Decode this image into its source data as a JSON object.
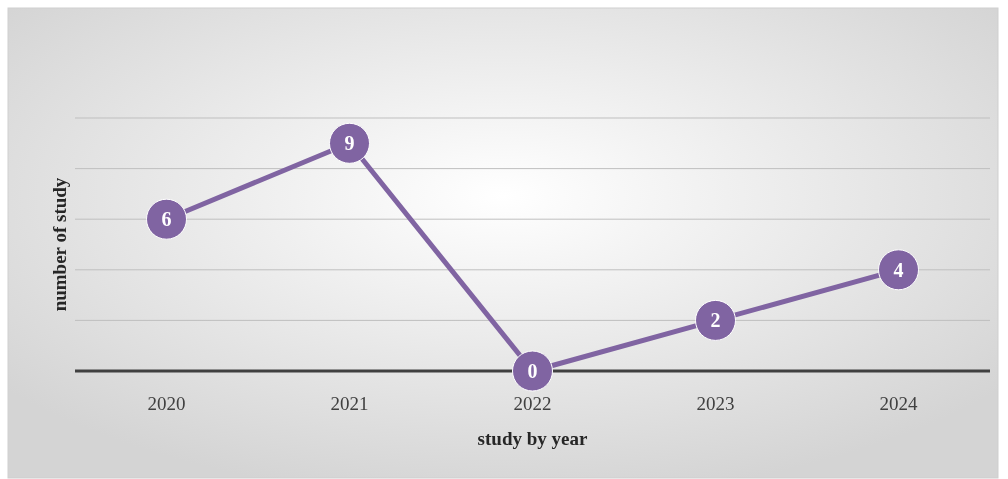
{
  "chart_data": {
    "type": "line",
    "xlabel": "study by year",
    "ylabel": "number of study",
    "categories": [
      "2020",
      "2021",
      "2022",
      "2023",
      "2024"
    ],
    "series": [
      {
        "color": "#8064a2",
        "values": [
          6,
          9,
          0,
          2,
          4
        ]
      }
    ],
    "ylim": [
      0,
      10
    ],
    "yticks": [
      {
        "value": 0,
        "label": null
      },
      {
        "value": 2,
        "label": null
      },
      {
        "value": 4,
        "label": null
      },
      {
        "value": 6,
        "label": null
      },
      {
        "value": 8,
        "label": null
      },
      {
        "value": 10,
        "label": null
      }
    ],
    "tick_labels": "x",
    "grid": "y",
    "marker": "circle",
    "line_style": "solid",
    "data_labels": true
  }
}
